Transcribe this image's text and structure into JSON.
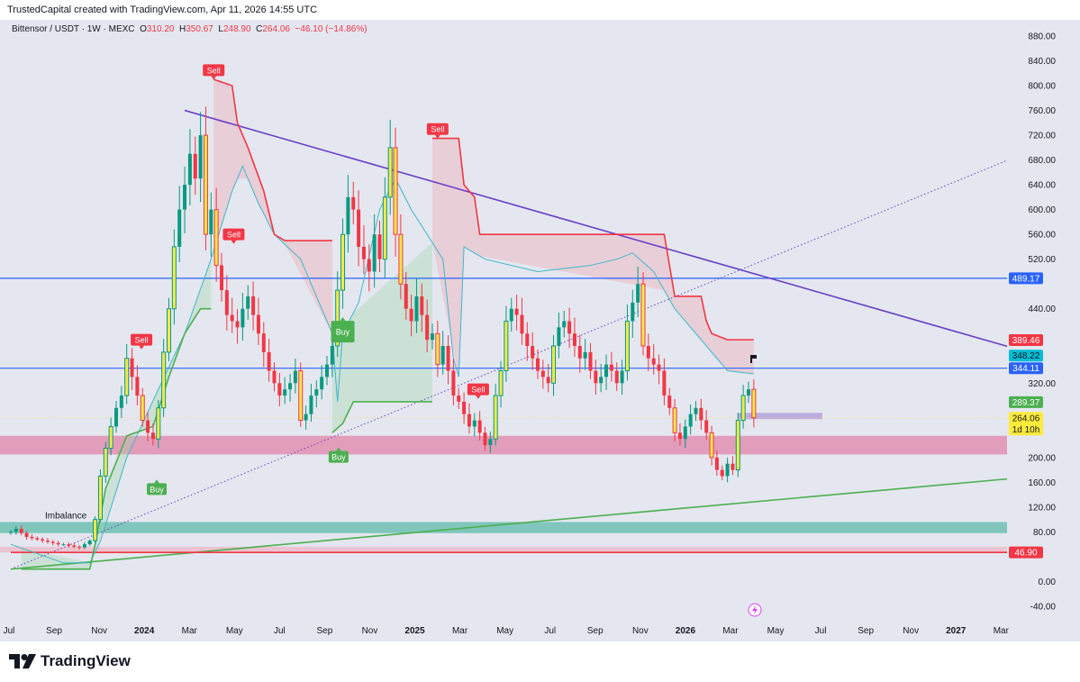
{
  "header": {
    "credit": "TrustedCapital created with TradingView.com, Apr 11, 2026 14:55 UTC",
    "symbol": "Bittensor / USDT · 1W · MEXC",
    "open_label": "O",
    "open": "310.20",
    "high_label": "H",
    "high": "350.67",
    "low_label": "L",
    "low": "248.90",
    "close_label": "C",
    "close": "264.06",
    "change": "−46.10 (−14.86%)"
  },
  "footer": {
    "brand": "TradingView"
  },
  "colors": {
    "up": "#089981",
    "down": "#f23645",
    "big": "#f7e94a",
    "trendline": "#6a3fc9",
    "level": "#2962ff",
    "supertrend_down": "#f23645",
    "supertrend_up": "#4caf50",
    "baseline": "#3fb6c9",
    "zone_pink": "#e28fb0",
    "zone_teal": "#6fc0b3"
  },
  "chart_data": {
    "type": "candlestick",
    "title": "Bittensor / USDT · 1W · MEXC",
    "ylim": [
      -40,
      880
    ],
    "y_ticks": [
      880,
      840,
      800,
      760,
      720,
      680,
      640,
      600,
      560,
      520,
      440,
      320,
      200,
      160,
      120,
      80,
      0,
      -40
    ],
    "x_ticks": [
      {
        "label": "Jul",
        "m": 0
      },
      {
        "label": "Sep",
        "m": 2
      },
      {
        "label": "Nov",
        "m": 4
      },
      {
        "label": "2024",
        "m": 6,
        "bold": true
      },
      {
        "label": "Mar",
        "m": 8
      },
      {
        "label": "May",
        "m": 10
      },
      {
        "label": "Jul",
        "m": 12
      },
      {
        "label": "Sep",
        "m": 14
      },
      {
        "label": "Nov",
        "m": 16
      },
      {
        "label": "2025",
        "m": 18,
        "bold": true
      },
      {
        "label": "Mar",
        "m": 20
      },
      {
        "label": "May",
        "m": 22
      },
      {
        "label": "Jul",
        "m": 24
      },
      {
        "label": "Sep",
        "m": 26
      },
      {
        "label": "Nov",
        "m": 28
      },
      {
        "label": "2026",
        "m": 30,
        "bold": true
      },
      {
        "label": "Mar",
        "m": 32
      },
      {
        "label": "May",
        "m": 34
      },
      {
        "label": "Jul",
        "m": 36
      },
      {
        "label": "Sep",
        "m": 38
      },
      {
        "label": "Nov",
        "m": 40
      },
      {
        "label": "2027",
        "m": 42,
        "bold": true
      },
      {
        "label": "Mar",
        "m": 44
      }
    ],
    "weekly_closes": [
      80,
      85,
      78,
      72,
      70,
      68,
      66,
      64,
      62,
      60,
      60,
      58,
      56,
      55,
      60,
      66,
      100,
      170,
      215,
      250,
      280,
      300,
      360,
      330,
      300,
      260,
      240,
      230,
      280,
      370,
      440,
      540,
      600,
      640,
      690,
      650,
      720,
      560,
      600,
      510,
      470,
      430,
      420,
      410,
      440,
      460,
      430,
      400,
      370,
      340,
      320,
      300,
      310,
      320,
      340,
      260,
      270,
      300,
      310,
      330,
      350,
      380,
      470,
      560,
      620,
      600,
      540,
      520,
      500,
      560,
      520,
      620,
      700,
      560,
      480,
      440,
      420,
      460,
      430,
      390,
      400,
      350,
      380,
      340,
      300,
      290,
      270,
      250,
      260,
      240,
      220,
      230,
      300,
      340,
      420,
      440,
      430,
      400,
      380,
      360,
      340,
      330,
      320,
      380,
      410,
      420,
      400,
      380,
      360,
      370,
      340,
      320,
      330,
      350,
      340,
      320,
      340,
      420,
      450,
      480,
      380,
      360,
      350,
      340,
      300,
      280,
      240,
      230,
      250,
      270,
      280,
      260,
      240,
      200,
      180,
      170,
      190,
      180,
      260,
      300,
      310,
      264.06
    ],
    "price_labels": [
      {
        "value": "489.17",
        "price": 489.17,
        "color": "#2962ff"
      },
      {
        "value": "389.46",
        "price": 389.46,
        "color": "#f23645"
      },
      {
        "value": "348.22",
        "price": 348.22,
        "color": "#00bcd4"
      },
      {
        "value": "344.11",
        "price": 344.11,
        "color": "#2962ff"
      },
      {
        "value": "289.37",
        "price": 289.37,
        "color": "#4caf50"
      },
      {
        "value": "264.06",
        "price": 264.06,
        "color": "#ffeb3b",
        "sub": "1d 10h"
      },
      {
        "value": "46.90",
        "price": 46.9,
        "color": "#f23645"
      }
    ],
    "horizontal_levels": [
      489.17,
      344.11
    ],
    "zones": [
      {
        "name": "pink-zone",
        "from": 205,
        "to": 235,
        "color": "#e28fb0"
      },
      {
        "name": "imbalance-zone",
        "from": 78,
        "to": 96,
        "color": "#6fc0b3",
        "label": "Imbalance"
      },
      {
        "name": "low-zone",
        "from": 46.9,
        "to": 56,
        "color": "#f0b3c3"
      }
    ],
    "trendlines": [
      {
        "name": "descending-trendline",
        "from": [
          33,
          760
        ],
        "to": [
          195,
          365
        ],
        "style": "solid",
        "color": "#6a3fc9"
      },
      {
        "name": "dotted-trendline",
        "from": [
          0,
          20
        ],
        "to": [
          195,
          700
        ],
        "style": "dotted",
        "color": "#6a3fc9"
      },
      {
        "name": "ascending-support",
        "from": [
          0,
          20
        ],
        "to": [
          195,
          170
        ],
        "style": "solid",
        "color": "#4caf50"
      },
      {
        "name": "low-level",
        "from": [
          0,
          46.9
        ],
        "to": [
          195,
          46.9
        ],
        "style": "solid",
        "color": "#f23645"
      }
    ],
    "supertrend_down": [
      [
        [
          38.5,
          810
        ],
        [
          42,
          800
        ],
        [
          43,
          740
        ],
        [
          45,
          700
        ],
        [
          48,
          630
        ],
        [
          50,
          560
        ],
        [
          52,
          550
        ],
        [
          61,
          550
        ]
      ],
      [
        [
          80,
          715
        ],
        [
          85,
          715
        ],
        [
          86,
          640
        ],
        [
          88,
          620
        ],
        [
          89,
          560
        ],
        [
          124,
          560
        ],
        [
          126,
          460
        ],
        [
          131,
          460
        ],
        [
          132,
          420
        ],
        [
          133,
          400
        ],
        [
          136,
          390
        ],
        [
          141,
          390
        ]
      ]
    ],
    "supertrend_up": [
      [
        [
          2,
          20
        ],
        [
          15,
          20
        ],
        [
          16,
          60
        ],
        [
          18,
          150
        ],
        [
          22,
          235
        ],
        [
          27,
          250
        ],
        [
          30,
          330
        ],
        [
          33,
          400
        ],
        [
          36,
          440
        ],
        [
          38,
          440
        ]
      ],
      [
        [
          61,
          240
        ],
        [
          63,
          255
        ],
        [
          65,
          290
        ],
        [
          80,
          290
        ]
      ]
    ],
    "baseline": [
      [
        0,
        60
      ],
      [
        10,
        30
      ],
      [
        15,
        30
      ],
      [
        17,
        65
      ],
      [
        22,
        200
      ],
      [
        28,
        310
      ],
      [
        33,
        400
      ],
      [
        38,
        520
      ],
      [
        42,
        630
      ],
      [
        44,
        670
      ],
      [
        47,
        610
      ],
      [
        50,
        560
      ],
      [
        55,
        520
      ],
      [
        58,
        460
      ],
      [
        61,
        400
      ],
      [
        62,
        290
      ],
      [
        63,
        400
      ],
      [
        66,
        450
      ],
      [
        70,
        600
      ],
      [
        73,
        650
      ],
      [
        76,
        600
      ],
      [
        79,
        560
      ],
      [
        82,
        520
      ],
      [
        84,
        360
      ],
      [
        85,
        330
      ],
      [
        86,
        540
      ],
      [
        90,
        520
      ],
      [
        100,
        500
      ],
      [
        110,
        510
      ],
      [
        115,
        520
      ],
      [
        118,
        530
      ],
      [
        122,
        500
      ],
      [
        126,
        440
      ],
      [
        130,
        400
      ],
      [
        134,
        360
      ],
      [
        136,
        340
      ],
      [
        141,
        335
      ]
    ],
    "signals": [
      {
        "label": "Sell",
        "w": 38.5,
        "price": 825,
        "type": "sell"
      },
      {
        "label": "Sell",
        "w": 42.3,
        "price": 560,
        "type": "sell"
      },
      {
        "label": "Sell",
        "w": 24.8,
        "price": 390,
        "type": "sell"
      },
      {
        "label": "Sell",
        "w": 81,
        "price": 730,
        "type": "sell"
      },
      {
        "label": "Sell",
        "w": 88.7,
        "price": 310,
        "type": "sell"
      },
      {
        "label": "Buy",
        "w": 27.7,
        "price": 149,
        "type": "buy"
      },
      {
        "label": "Buy",
        "w": 63,
        "price": 403,
        "type": "buy"
      },
      {
        "label": "Buy",
        "w": 62.2,
        "price": 201,
        "type": "buy"
      }
    ],
    "projection_box": {
      "w_from": 138,
      "w_to": 154,
      "price_from": 262,
      "price_to": 272
    }
  }
}
